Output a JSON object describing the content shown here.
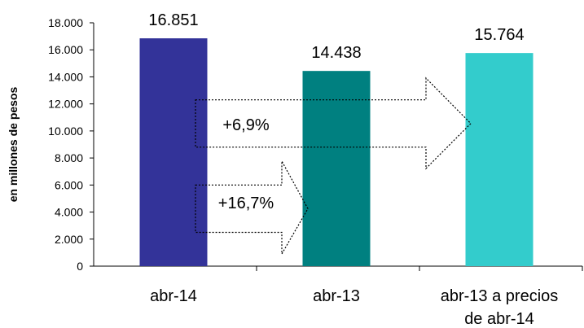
{
  "chart_data": {
    "type": "bar",
    "title": "",
    "xlabel": "",
    "ylabel": "en millones de pesos",
    "ylim": [
      0,
      18000
    ],
    "y_ticks": [
      "0",
      "2.000",
      "4.000",
      "6.000",
      "8.000",
      "10.000",
      "12.000",
      "14.000",
      "16.000",
      "18.000"
    ],
    "categories": [
      [
        "abr-14"
      ],
      [
        "abr-13"
      ],
      [
        "abr-13 a precios",
        "de abr-14"
      ]
    ],
    "values": [
      16851,
      14438,
      15764
    ],
    "value_labels": [
      "16.851",
      "14.438",
      "15.764"
    ],
    "colors": [
      "#333399",
      "#008080",
      "#33CCCC"
    ],
    "grid": false,
    "annotations": [
      {
        "text": "+16,7%",
        "from": "abr-14",
        "to": "abr-13"
      },
      {
        "text": "+6,9%",
        "from": "abr-14",
        "to": "abr-13 a precios de abr-14"
      }
    ]
  }
}
